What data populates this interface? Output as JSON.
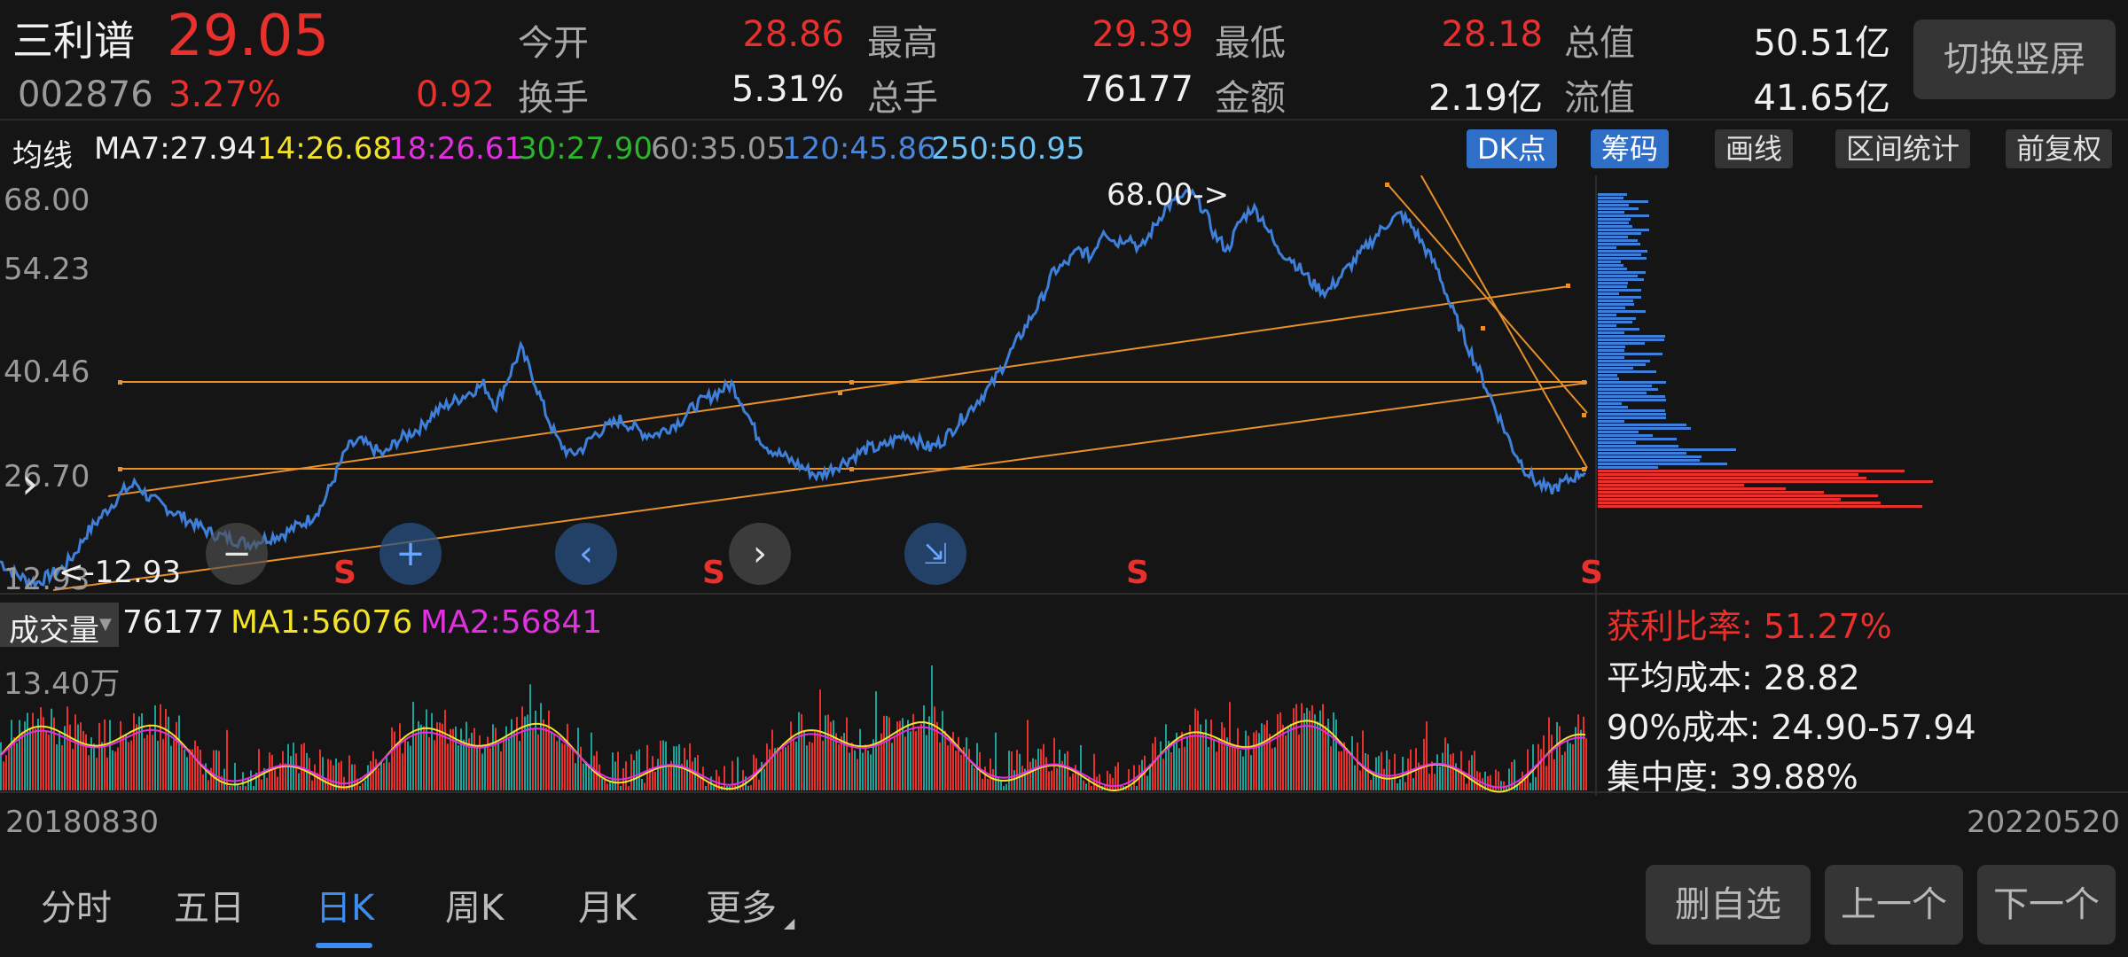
{
  "stock": {
    "name": "三利谱",
    "price": "29.05",
    "code": "002876",
    "change_pct": "3.27%",
    "change": "0.92"
  },
  "quote": {
    "open_label": "今开",
    "open": "28.86",
    "high_label": "最高",
    "high": "29.39",
    "low_label": "最低",
    "low": "28.18",
    "mktcap_label": "总值",
    "mktcap": "50.51亿",
    "turnover_label": "换手",
    "turnover": "5.31%",
    "volume_label": "总手",
    "volume": "76177",
    "amount_label": "金额",
    "amount": "2.19亿",
    "float_label": "流值",
    "float": "41.65亿"
  },
  "switch_button": "切换竖屏",
  "ma_bar": {
    "label": "均线",
    "ma7": "MA7:27.94",
    "ma14": "14:26.68",
    "ma18": "18:26.61",
    "ma30": "30:27.90",
    "ma60": "60:35.05",
    "ma120": "120:45.86",
    "ma250": "250:50.95"
  },
  "tools": {
    "dk": "DK点",
    "chips": "筹码",
    "draw": "画线",
    "range": "区间统计",
    "adjust": "前复权"
  },
  "price_axis": [
    "68.00",
    "54.23",
    "40.46",
    "26.70",
    "12.93"
  ],
  "annotations": {
    "high": "68.00->",
    "low": "<-12.93",
    "signal": "S"
  },
  "volume": {
    "label": "成交量",
    "value": "76177",
    "ma1": "MA1:56076",
    "ma2": "MA2:56841",
    "max": "13.40万"
  },
  "chip_stats": {
    "profit_ratio": "获利比率: 51.27%",
    "avg_cost": "平均成本: 28.82",
    "cost90": "90%成本:  24.90-57.94",
    "concentration": "集中度: 39.88%"
  },
  "dates": {
    "start": "20180830",
    "end": "20220520"
  },
  "tabs": [
    "分时",
    "五日",
    "日K",
    "周K",
    "月K",
    "更多"
  ],
  "active_tab": "日K",
  "bottom_buttons": {
    "delete": "删自选",
    "prev": "上一个",
    "next": "下一个"
  },
  "colors": {
    "up": "#e8302d",
    "down": "#1aa39a",
    "line": "#3d7fd9",
    "trend": "#e8902a",
    "ma1": "#f2e22a",
    "ma2": "#e030e0"
  },
  "chart_data": {
    "type": "line",
    "x_start": "20180830",
    "x_end": "20220520",
    "y_range": [
      12.93,
      68.0
    ],
    "close": [
      16,
      14.5,
      13.5,
      13,
      14,
      15,
      17,
      20,
      22,
      24,
      26,
      27,
      25,
      24,
      23,
      22,
      21,
      20,
      19.5,
      19,
      18.5,
      19,
      19.5,
      20,
      21,
      22,
      24,
      28,
      32,
      33,
      32,
      31,
      33,
      34,
      35,
      37,
      38,
      39,
      40,
      41,
      38,
      42,
      46,
      42,
      37,
      33,
      31,
      32,
      34,
      35,
      36,
      35,
      34,
      34,
      35,
      36,
      38,
      39,
      40,
      41,
      38,
      34,
      32,
      31,
      30,
      29,
      28,
      29,
      30,
      31,
      32,
      32,
      33,
      34,
      33,
      32,
      33,
      35,
      37,
      39,
      41,
      44,
      47,
      50,
      53,
      57,
      58,
      60,
      59,
      63,
      61,
      62,
      60,
      63,
      66,
      67,
      68,
      66,
      62,
      60,
      64,
      66,
      64,
      60,
      59,
      57,
      55,
      54,
      56,
      58,
      60,
      62,
      64,
      65,
      63,
      60,
      57,
      52,
      48,
      44,
      40,
      36,
      32,
      29,
      27,
      26,
      27,
      28,
      29
    ]
  }
}
